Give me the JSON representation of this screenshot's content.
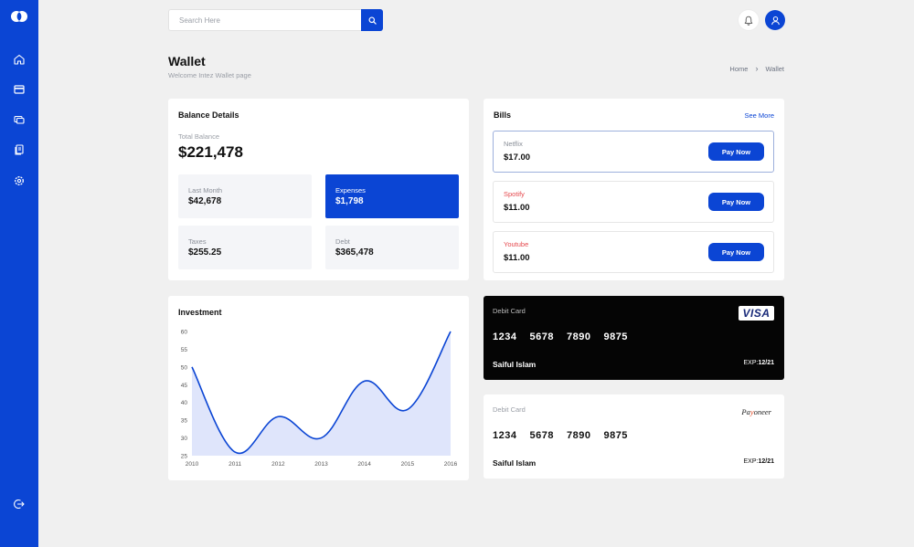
{
  "search": {
    "placeholder": "Search Here"
  },
  "header": {
    "title": "Wallet",
    "subtitle": "Welcome Intez Wallet page",
    "breadcrumb": [
      "Home",
      "Wallet"
    ]
  },
  "sidebar": {
    "items": [
      {
        "icon": "home-icon"
      },
      {
        "icon": "wallet-icon",
        "active": true
      },
      {
        "icon": "cards-icon"
      },
      {
        "icon": "documents-icon"
      },
      {
        "icon": "settings-icon"
      }
    ],
    "logout_icon": "logout-icon"
  },
  "balance": {
    "title": "Balance Details",
    "total_label": "Total Balance",
    "total_value": "$221,478",
    "stats": [
      {
        "label": "Last Month",
        "value": "$42,678"
      },
      {
        "label": "Expenses",
        "value": "$1,798"
      },
      {
        "label": "Taxes",
        "value": "$255.25"
      },
      {
        "label": "Debt",
        "value": "$365,478"
      }
    ]
  },
  "bills": {
    "title": "Bills",
    "see_more": "See More",
    "items": [
      {
        "name": "Netflix",
        "amount": "$17.00",
        "button": "Pay Now",
        "name_color": "#8a8f98"
      },
      {
        "name": "Spotify",
        "amount": "$11.00",
        "button": "Pay Now",
        "name_color": "#e5484d"
      },
      {
        "name": "Youtube",
        "amount": "$11.00",
        "button": "Pay Now",
        "name_color": "#e5484d"
      }
    ]
  },
  "investment": {
    "title": "Investment"
  },
  "chart_data": {
    "type": "area",
    "x": [
      "2010",
      "2011",
      "2012",
      "2013",
      "2014",
      "2015",
      "2016"
    ],
    "values": [
      50,
      26,
      36,
      30,
      46,
      38,
      60
    ],
    "ylim": [
      25,
      60
    ],
    "yticks": [
      "25",
      "30",
      "35",
      "40",
      "45",
      "50",
      "55",
      "60"
    ],
    "line_color": "#0b45d4",
    "fill_color": "#dfe5fb",
    "grid": false
  },
  "cards": [
    {
      "label": "Debit Card",
      "number": [
        "1234",
        "5678",
        "7890",
        "9875"
      ],
      "holder": "Saiful Islam",
      "exp_label": "EXP:",
      "exp_value": "12/21",
      "brand": "VISA"
    },
    {
      "label": "Debit Card",
      "number": [
        "1234",
        "5678",
        "7890",
        "9875"
      ],
      "holder": "Saiful Islam",
      "exp_label": "EXP:",
      "exp_value": "12/21",
      "brand_parts": [
        "Pa",
        "y",
        "oneer"
      ]
    }
  ],
  "colors": {
    "primary": "#0b45d4",
    "background": "#f0f0f0"
  }
}
